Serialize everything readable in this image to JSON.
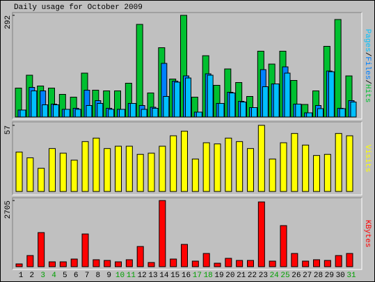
{
  "title": "Daily usage for October 2009",
  "chart_data": [
    {
      "type": "bar",
      "series": [
        {
          "name": "Hits",
          "color": "#00c030",
          "values": [
            83,
            120,
            89,
            83,
            65,
            57,
            126,
            77,
            75,
            75,
            97,
            266,
            69,
            199,
            109,
            292,
            57,
            176,
            91,
            138,
            99,
            59,
            189,
            152,
            189,
            105,
            36,
            75,
            203,
            280,
            118
          ]
        },
        {
          "name": "Files",
          "color": "#0080ff",
          "values": [
            20,
            85,
            75,
            37,
            22,
            25,
            77,
            47,
            25,
            22,
            39,
            33,
            28,
            154,
            103,
            118,
            14,
            124,
            39,
            71,
            45,
            27,
            136,
            95,
            144,
            37,
            12,
            33,
            132,
            25,
            47
          ]
        },
        {
          "name": "Pages",
          "color": "#00c0ff",
          "values": [
            20,
            75,
            35,
            35,
            22,
            22,
            33,
            39,
            22,
            22,
            39,
            22,
            25,
            59,
            100,
            112,
            14,
            120,
            39,
            69,
            43,
            27,
            87,
            95,
            126,
            37,
            12,
            24,
            130,
            24,
            43
          ]
        }
      ],
      "legend_separator": "/",
      "ylim": [
        0,
        292
      ],
      "yticks": [
        292
      ]
    },
    {
      "type": "bar",
      "series": [
        {
          "name": "Visits",
          "color": "#ffff00",
          "values": [
            34,
            29,
            20,
            37,
            33,
            27,
            43,
            46,
            37,
            39,
            39,
            32,
            33,
            39,
            48,
            52,
            28,
            42,
            41,
            46,
            43,
            37,
            57,
            28,
            42,
            50,
            40,
            31,
            32,
            50,
            48
          ]
        }
      ],
      "ylim": [
        0,
        57
      ],
      "yticks": [
        57
      ]
    },
    {
      "type": "bar",
      "series": [
        {
          "name": "KBytes",
          "color": "#ff0000",
          "values": [
            114,
            456,
            1395,
            199,
            199,
            313,
            1338,
            285,
            256,
            199,
            285,
            826,
            171,
            2705,
            313,
            911,
            228,
            541,
            142,
            342,
            256,
            256,
            2648,
            228,
            1680,
            541,
            228,
            285,
            256,
            456,
            541
          ]
        }
      ],
      "ylim": [
        0,
        2705
      ],
      "yticks": [
        2705
      ],
      "categories": [
        "1",
        "2",
        "3",
        "4",
        "5",
        "6",
        "7",
        "8",
        "9",
        "10",
        "11",
        "12",
        "13",
        "14",
        "15",
        "16",
        "17",
        "18",
        "19",
        "20",
        "21",
        "22",
        "23",
        "24",
        "25",
        "26",
        "27",
        "28",
        "29",
        "30",
        "31"
      ],
      "category_colors": [
        "#000000",
        "#000000",
        "#00a000",
        "#00a000",
        "#000000",
        "#000000",
        "#000000",
        "#000000",
        "#000000",
        "#00a000",
        "#00a000",
        "#000000",
        "#000000",
        "#000000",
        "#000000",
        "#000000",
        "#00a000",
        "#00a000",
        "#000000",
        "#000000",
        "#000000",
        "#000000",
        "#000000",
        "#00a000",
        "#00a000",
        "#000000",
        "#000000",
        "#000000",
        "#000000",
        "#000000",
        "#00a000"
      ]
    }
  ]
}
